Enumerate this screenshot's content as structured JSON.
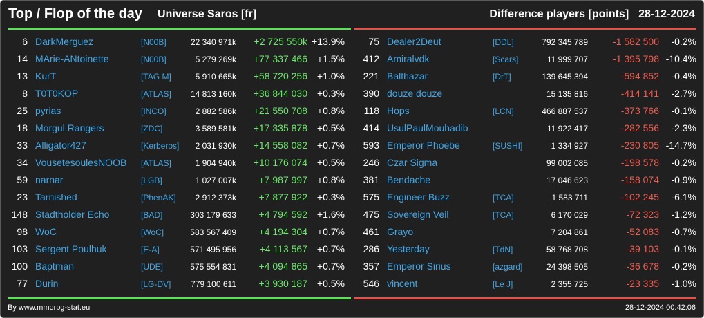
{
  "header": {
    "title": "Top / Flop of the day",
    "universe": "Universe Saros [fr]",
    "subtitle": "Difference players [points]",
    "date": "28-12-2024"
  },
  "colors": {
    "top_accent": "#5ee05a",
    "flop_accent": "#e0524a",
    "link": "#3fa6e8",
    "background": "#202020"
  },
  "top": [
    {
      "rank": "6",
      "name": "DarkMerguez",
      "tag": "[N00B]",
      "points": "22 340 971k",
      "diff": "+2 725 550k",
      "pct": "+13.9%"
    },
    {
      "rank": "14",
      "name": "MArie-ANtoinette",
      "tag": "[N00B]",
      "points": "5 279 269k",
      "diff": "+77 337 466",
      "pct": "+1.5%"
    },
    {
      "rank": "13",
      "name": "KurT",
      "tag": "[TAG M]",
      "points": "5 910 665k",
      "diff": "+58 720 256",
      "pct": "+1.0%"
    },
    {
      "rank": "8",
      "name": "T0T0KOP",
      "tag": "[ATLAS]",
      "points": "14 813 160k",
      "diff": "+36 844 030",
      "pct": "+0.3%"
    },
    {
      "rank": "25",
      "name": "pyrias",
      "tag": "[INCO]",
      "points": "2 882 586k",
      "diff": "+21 550 708",
      "pct": "+0.8%"
    },
    {
      "rank": "18",
      "name": "Morgul Rangers",
      "tag": "[ZDC]",
      "points": "3 589 581k",
      "diff": "+17 335 878",
      "pct": "+0.5%"
    },
    {
      "rank": "33",
      "name": "Alligator427",
      "tag": "[Kerberos]",
      "points": "2 031 930k",
      "diff": "+14 558 082",
      "pct": "+0.7%"
    },
    {
      "rank": "34",
      "name": "VousetesoulesNOOB",
      "tag": "[ATLAS]",
      "points": "1 904 940k",
      "diff": "+10 176 074",
      "pct": "+0.5%"
    },
    {
      "rank": "59",
      "name": "narnar",
      "tag": "[LGB]",
      "points": "1 027 007k",
      "diff": "+7 987 997",
      "pct": "+0.8%"
    },
    {
      "rank": "23",
      "name": "Tarnished",
      "tag": "[PhenAK]",
      "points": "2 912 373k",
      "diff": "+7 877 922",
      "pct": "+0.3%"
    },
    {
      "rank": "148",
      "name": "Stadtholder Echo",
      "tag": "[BAD]",
      "points": "303 179 633",
      "diff": "+4 794 592",
      "pct": "+1.6%"
    },
    {
      "rank": "98",
      "name": "WoC",
      "tag": "[WoC]",
      "points": "583 567 409",
      "diff": "+4 194 304",
      "pct": "+0.7%"
    },
    {
      "rank": "103",
      "name": "Sergent Poulhuk",
      "tag": "[E-A]",
      "points": "571 495 956",
      "diff": "+4 113 567",
      "pct": "+0.7%"
    },
    {
      "rank": "100",
      "name": "Baptman",
      "tag": "[UDE]",
      "points": "575 554 831",
      "diff": "+4 094 865",
      "pct": "+0.7%"
    },
    {
      "rank": "77",
      "name": "Durin",
      "tag": "[LG-DV]",
      "points": "779 100 611",
      "diff": "+3 930 187",
      "pct": "+0.5%"
    }
  ],
  "flop": [
    {
      "rank": "75",
      "name": "Dealer2Deut",
      "tag": "[DDL]",
      "points": "792 345 789",
      "diff": "-1 582 500",
      "pct": "-0.2%"
    },
    {
      "rank": "412",
      "name": "Amiralvdk",
      "tag": "[Scars]",
      "points": "11 999 707",
      "diff": "-1 395 798",
      "pct": "-10.4%"
    },
    {
      "rank": "221",
      "name": "Balthazar",
      "tag": "[DrT]",
      "points": "139 645 394",
      "diff": "-594 852",
      "pct": "-0.4%"
    },
    {
      "rank": "390",
      "name": "douze douze",
      "tag": "",
      "points": "15 135 816",
      "diff": "-414 141",
      "pct": "-2.7%"
    },
    {
      "rank": "118",
      "name": "Hops",
      "tag": "[LCN]",
      "points": "466 887 537",
      "diff": "-373 766",
      "pct": "-0.1%"
    },
    {
      "rank": "414",
      "name": "UsulPaulMouhadib",
      "tag": "",
      "points": "11 922 417",
      "diff": "-282 556",
      "pct": "-2.3%"
    },
    {
      "rank": "593",
      "name": "Emperor Phoebe",
      "tag": "[SUSHI]",
      "points": "1 334 927",
      "diff": "-230 805",
      "pct": "-14.7%"
    },
    {
      "rank": "246",
      "name": "Czar Sigma",
      "tag": "",
      "points": "99 002 085",
      "diff": "-198 578",
      "pct": "-0.2%"
    },
    {
      "rank": "381",
      "name": "Bendache",
      "tag": "",
      "points": "17 046 623",
      "diff": "-158 074",
      "pct": "-0.9%"
    },
    {
      "rank": "575",
      "name": "Engineer Buzz",
      "tag": "[TCA]",
      "points": "1 583 711",
      "diff": "-102 245",
      "pct": "-6.1%"
    },
    {
      "rank": "475",
      "name": "Sovereign Veil",
      "tag": "[TCA]",
      "points": "6 170 029",
      "diff": "-72 323",
      "pct": "-1.2%"
    },
    {
      "rank": "461",
      "name": "Grayo",
      "tag": "",
      "points": "7 204 861",
      "diff": "-52 083",
      "pct": "-0.7%"
    },
    {
      "rank": "286",
      "name": "Yesterday",
      "tag": "[TdN]",
      "points": "58 768 708",
      "diff": "-39 103",
      "pct": "-0.1%"
    },
    {
      "rank": "357",
      "name": "Emperor Sirius",
      "tag": "[azgard]",
      "points": "24 398 505",
      "diff": "-36 678",
      "pct": "-0.2%"
    },
    {
      "rank": "546",
      "name": "vincent",
      "tag": "[Le J]",
      "points": "2 355 725",
      "diff": "-23 335",
      "pct": "-1.0%"
    }
  ],
  "footer": {
    "credit": "By www.mmorpg-stat.eu",
    "timestamp": "28-12-2024 00:42:06"
  }
}
